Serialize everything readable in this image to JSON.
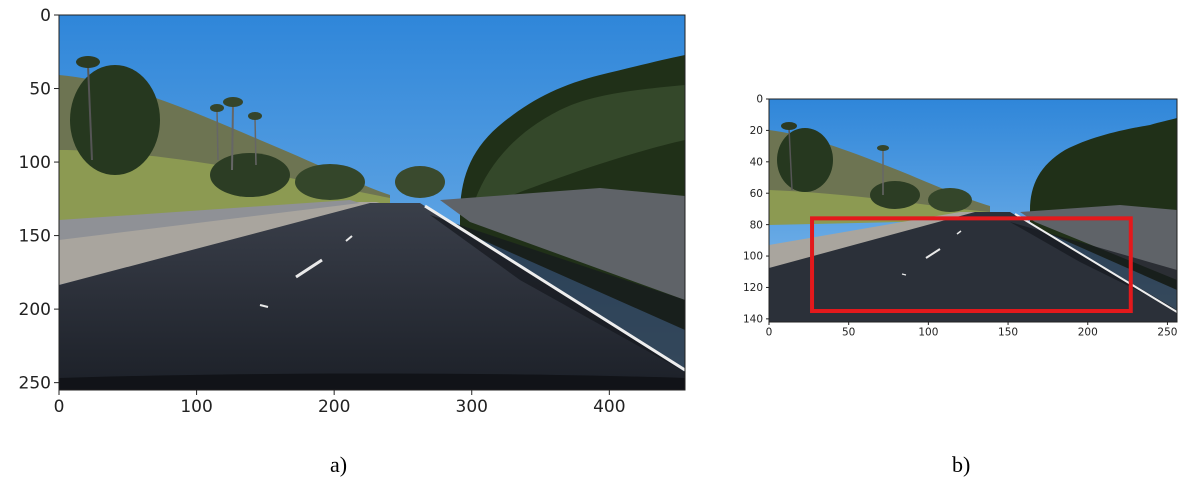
{
  "figures": [
    {
      "id": "a",
      "caption": "a)",
      "image_desc": "road-scene-sunny-highway",
      "x_ticks": [
        "0",
        "100",
        "200",
        "300",
        "400"
      ],
      "y_ticks": [
        "0",
        "50",
        "100",
        "150",
        "200",
        "250"
      ],
      "x_range": [
        0,
        455
      ],
      "y_range": [
        0,
        255
      ]
    },
    {
      "id": "b",
      "caption": "b)",
      "image_desc": "road-scene-cropped-with-roi",
      "x_ticks": [
        "0",
        "50",
        "100",
        "150",
        "200",
        "250"
      ],
      "y_ticks": [
        "0",
        "20",
        "40",
        "60",
        "80",
        "100",
        "120",
        "140"
      ],
      "x_range": [
        0,
        256
      ],
      "y_range": [
        0,
        142
      ],
      "roi": {
        "x0": 27,
        "y0": 76,
        "x1": 227,
        "y1": 135,
        "color": "#e3191c"
      }
    }
  ]
}
